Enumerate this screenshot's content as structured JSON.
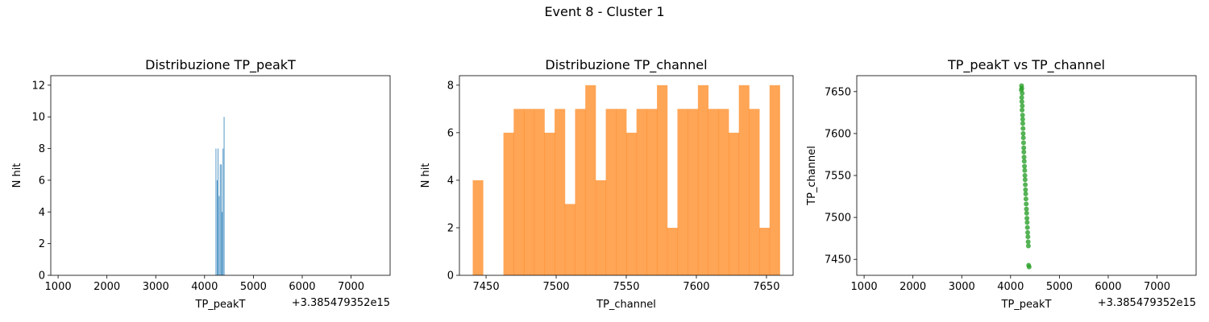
{
  "figure": {
    "suptitle": "Event 8 - Cluster 1"
  },
  "colors": {
    "hist_peakT": "#1f77b4",
    "hist_channel": "#ff7f0e",
    "scatter": "#2ca02c"
  },
  "chart_data": [
    {
      "type": "bar",
      "title": "Distribuzione TP_peakT",
      "xlabel": "TP_peakT",
      "ylabel": "N hit",
      "x_offset_label": "+3.385479352e15",
      "xlim": [
        850,
        7800
      ],
      "ylim": [
        0,
        12.6
      ],
      "xticks": [
        1000,
        2000,
        3000,
        4000,
        5000,
        6000,
        7000
      ],
      "yticks": [
        0,
        2,
        4,
        6,
        8,
        10,
        12
      ],
      "bars": [
        {
          "x": 4225,
          "width": 14,
          "value": 8
        },
        {
          "x": 4250,
          "width": 12,
          "value": 6
        },
        {
          "x": 4268,
          "width": 12,
          "value": 8
        },
        {
          "x": 4290,
          "width": 12,
          "value": 5
        },
        {
          "x": 4312,
          "width": 12,
          "value": 7
        },
        {
          "x": 4335,
          "width": 12,
          "value": 7
        },
        {
          "x": 4352,
          "width": 12,
          "value": 4
        },
        {
          "x": 4370,
          "width": 12,
          "value": 8
        },
        {
          "x": 4392,
          "width": 14,
          "value": 10
        }
      ]
    },
    {
      "type": "bar",
      "title": "Distribuzione TP_channel",
      "xlabel": "TP_channel",
      "ylabel": "N hit",
      "xlim": [
        7431,
        7669
      ],
      "ylim": [
        0,
        8.4
      ],
      "xticks": [
        7450,
        7500,
        7550,
        7600,
        7650
      ],
      "yticks": [
        0,
        2,
        4,
        6,
        8
      ],
      "bin_start": 7440.5,
      "bin_width": 7.3,
      "values": [
        4,
        0,
        0,
        6,
        7,
        7,
        7,
        6,
        7,
        3,
        7,
        8,
        4,
        7,
        7,
        6,
        7,
        7,
        8,
        2,
        7,
        7,
        8,
        7,
        7,
        6,
        8,
        7,
        2,
        8
      ]
    },
    {
      "type": "scatter",
      "title": "TP_peakT vs TP_channel",
      "xlabel": "TP_peakT",
      "ylabel": "TP_channel",
      "x_offset_label": "+3.385479352e15",
      "xlim": [
        850,
        7800
      ],
      "ylim": [
        7431,
        7669
      ],
      "xticks": [
        1000,
        2000,
        3000,
        4000,
        5000,
        6000,
        7000
      ],
      "yticks": [
        7450,
        7500,
        7550,
        7600,
        7650
      ],
      "points": [
        {
          "x": 4225,
          "y": 7657
        },
        {
          "x": 4230,
          "y": 7654
        },
        {
          "x": 4220,
          "y": 7652
        },
        {
          "x": 4238,
          "y": 7648
        },
        {
          "x": 4228,
          "y": 7643
        },
        {
          "x": 4232,
          "y": 7638
        },
        {
          "x": 4240,
          "y": 7633
        },
        {
          "x": 4236,
          "y": 7628
        },
        {
          "x": 4245,
          "y": 7622
        },
        {
          "x": 4248,
          "y": 7617
        },
        {
          "x": 4250,
          "y": 7612
        },
        {
          "x": 4255,
          "y": 7606
        },
        {
          "x": 4258,
          "y": 7600
        },
        {
          "x": 4262,
          "y": 7595
        },
        {
          "x": 4266,
          "y": 7589
        },
        {
          "x": 4270,
          "y": 7583
        },
        {
          "x": 4272,
          "y": 7578
        },
        {
          "x": 4276,
          "y": 7572
        },
        {
          "x": 4280,
          "y": 7567
        },
        {
          "x": 4285,
          "y": 7561
        },
        {
          "x": 4290,
          "y": 7556
        },
        {
          "x": 4294,
          "y": 7550
        },
        {
          "x": 4298,
          "y": 7545
        },
        {
          "x": 4302,
          "y": 7539
        },
        {
          "x": 4306,
          "y": 7533
        },
        {
          "x": 4310,
          "y": 7528
        },
        {
          "x": 4315,
          "y": 7522
        },
        {
          "x": 4320,
          "y": 7516
        },
        {
          "x": 4325,
          "y": 7510
        },
        {
          "x": 4330,
          "y": 7505
        },
        {
          "x": 4335,
          "y": 7499
        },
        {
          "x": 4340,
          "y": 7494
        },
        {
          "x": 4345,
          "y": 7488
        },
        {
          "x": 4350,
          "y": 7482
        },
        {
          "x": 4355,
          "y": 7477
        },
        {
          "x": 4360,
          "y": 7471
        },
        {
          "x": 4365,
          "y": 7466
        },
        {
          "x": 4370,
          "y": 7443
        },
        {
          "x": 4380,
          "y": 7441
        }
      ]
    }
  ]
}
